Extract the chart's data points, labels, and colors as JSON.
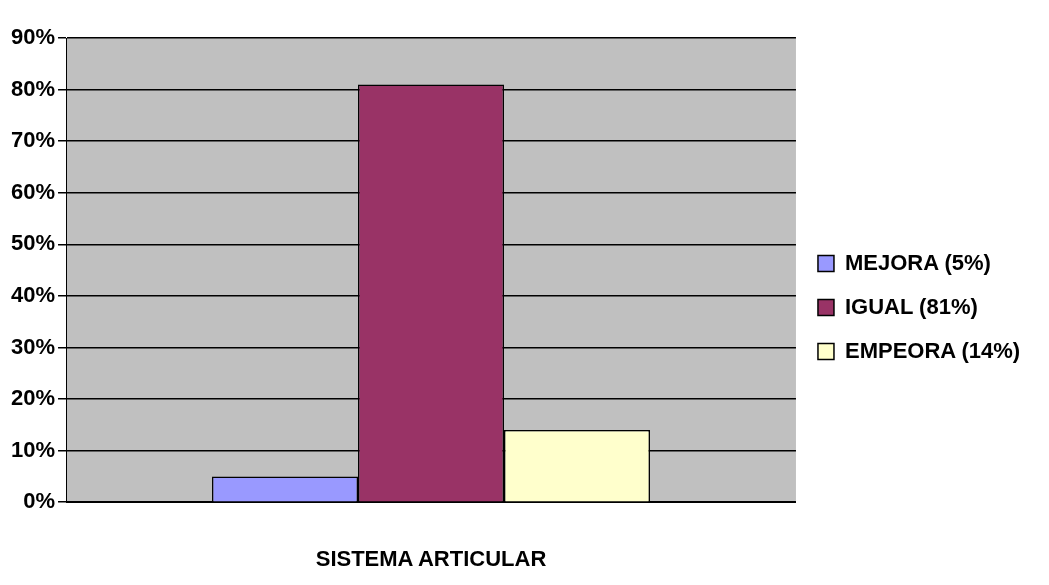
{
  "chart_data": {
    "type": "bar",
    "xlabel": "SISTEMA ARTICULAR",
    "categories": [
      null
    ],
    "series": [
      {
        "name": "MEJORA (5%)",
        "color": "#9999ff",
        "values": [
          5
        ]
      },
      {
        "name": "IGUAL (81%)",
        "color": "#993366",
        "values": [
          81
        ]
      },
      {
        "name": "EMPEORA (14%)",
        "color": "#ffffcc",
        "values": [
          14
        ]
      }
    ],
    "ylim": [
      0,
      90
    ],
    "yticks": [
      {
        "value": 0,
        "label": "0%"
      },
      {
        "value": 10,
        "label": "10%"
      },
      {
        "value": 20,
        "label": "20%"
      },
      {
        "value": 30,
        "label": "30%"
      },
      {
        "value": 40,
        "label": "40%"
      },
      {
        "value": 50,
        "label": "50%"
      },
      {
        "value": 60,
        "label": "60%"
      },
      {
        "value": 70,
        "label": "70%"
      },
      {
        "value": 80,
        "label": "80%"
      },
      {
        "value": 90,
        "label": "90%"
      }
    ],
    "grid": "y",
    "legend": "right"
  }
}
